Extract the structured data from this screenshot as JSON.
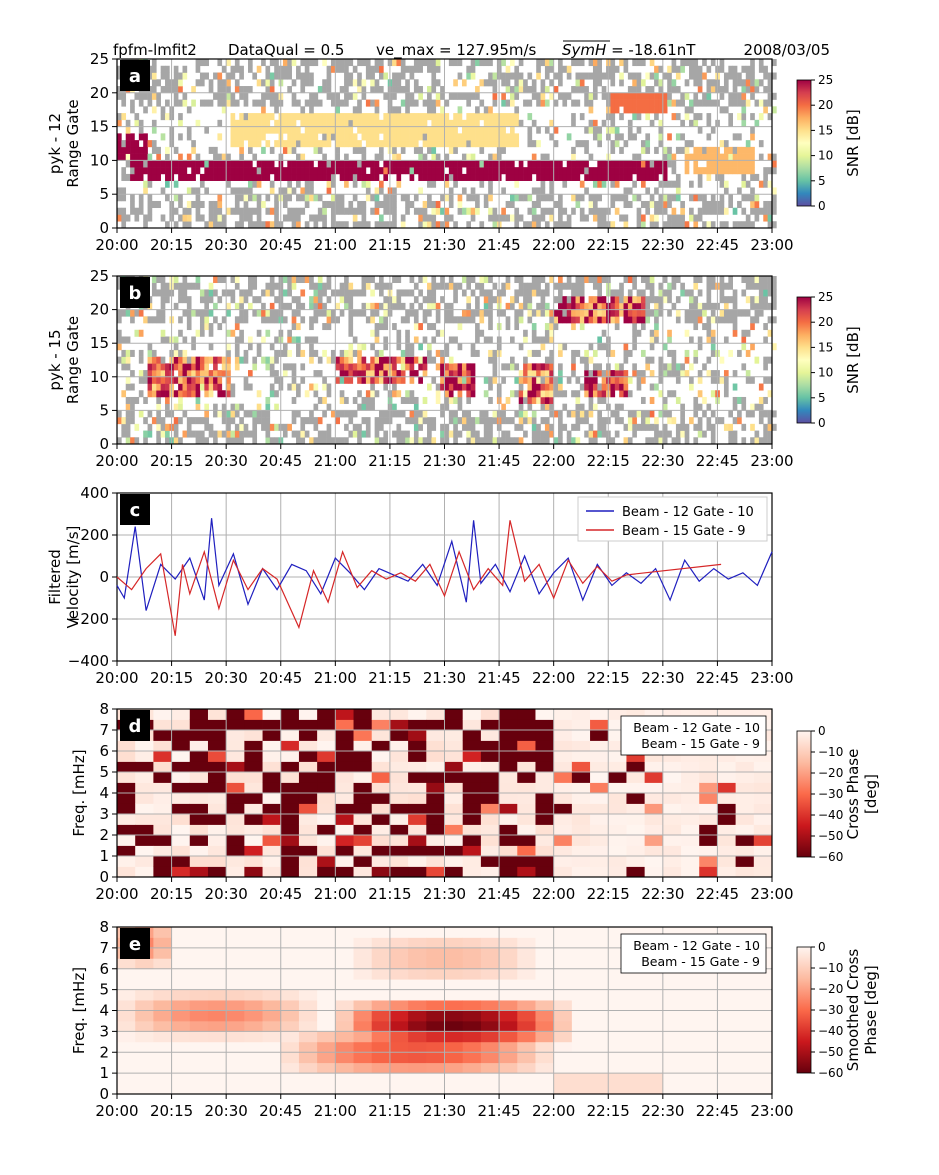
{
  "header": {
    "source": "fpfm-lmfit2",
    "quality": "DataQual = 0.5",
    "vemax": "ve_max = 127.95m/s",
    "symh_name": "SymH",
    "symh_value": " = -18.61nT",
    "date": "2008/03/05"
  },
  "x_ticks": [
    "20:00",
    "20:15",
    "20:30",
    "20:45",
    "21:00",
    "21:15",
    "21:30",
    "21:45",
    "22:00",
    "22:15",
    "22:30",
    "22:45",
    "23:00"
  ],
  "x_range": [
    "20:00",
    "23:00"
  ],
  "colors": {
    "grey_scatter": "#a6a6a6",
    "beam12_line": "#1f1fbf",
    "beam15_line": "#d62728",
    "grid": "#b0b0b0"
  },
  "chart_data": [
    {
      "panel": "a",
      "type": "heatmap",
      "ylabel": [
        "pyk - 12",
        "Range Gate"
      ],
      "yticks": [
        0,
        5,
        10,
        15,
        20,
        25
      ],
      "ylim": [
        0,
        25
      ],
      "colorbar_label": "SNR [dB]",
      "colorbar_ticks": [
        0,
        5,
        10,
        15,
        20,
        25
      ],
      "colormap": "Spectral_r",
      "description_bands": [
        {
          "time_start": "20:03",
          "time_end": "22:30",
          "gate_low": 7,
          "gate_high": 10,
          "snr": 25
        },
        {
          "time_start": "20:00",
          "time_end": "20:08",
          "gate_low": 10,
          "gate_high": 14,
          "snr": 25
        },
        {
          "time_start": "20:30",
          "time_end": "21:50",
          "gate_low": 12,
          "gate_high": 17,
          "snr": 15
        },
        {
          "time_start": "22:15",
          "time_end": "22:30",
          "gate_low": 17,
          "gate_high": 20,
          "snr": 20
        },
        {
          "time_start": "22:35",
          "time_end": "22:55",
          "gate_low": 8,
          "gate_high": 12,
          "snr": 17
        }
      ]
    },
    {
      "panel": "b",
      "type": "heatmap",
      "ylabel": [
        "pyk - 15",
        "Range Gate"
      ],
      "yticks": [
        0,
        5,
        10,
        15,
        20,
        25
      ],
      "ylim": [
        0,
        25
      ],
      "colorbar_label": "SNR [dB]",
      "colorbar_ticks": [
        0,
        5,
        10,
        15,
        20,
        25
      ],
      "colormap": "Spectral_r",
      "description_bands": [
        {
          "time_start": "20:08",
          "time_end": "20:30",
          "gate_low": 7,
          "gate_high": 13,
          "snr": 22
        },
        {
          "time_start": "21:00",
          "time_end": "21:25",
          "gate_low": 9,
          "gate_high": 13,
          "snr": 22
        },
        {
          "time_start": "21:28",
          "time_end": "21:38",
          "gate_low": 7,
          "gate_high": 12,
          "snr": 24
        },
        {
          "time_start": "21:50",
          "time_end": "22:00",
          "gate_low": 6,
          "gate_high": 12,
          "snr": 20
        },
        {
          "time_start": "22:08",
          "time_end": "22:20",
          "gate_low": 7,
          "gate_high": 11,
          "snr": 23
        },
        {
          "time_start": "22:00",
          "time_end": "22:25",
          "gate_low": 18,
          "gate_high": 22,
          "snr": 22
        }
      ]
    },
    {
      "panel": "c",
      "type": "line",
      "ylabel": [
        "Filtered",
        "Velocity [m/s]"
      ],
      "yticks": [
        -400,
        -200,
        0,
        200,
        400
      ],
      "ylim": [
        -400,
        400
      ],
      "legend": "top-right",
      "series": [
        {
          "name": "Beam - 12 Gate - 10",
          "x": [
            "20:00",
            "20:02",
            "20:05",
            "20:08",
            "20:12",
            "20:16",
            "20:20",
            "20:24",
            "20:26",
            "20:28",
            "20:32",
            "20:36",
            "20:40",
            "20:44",
            "20:48",
            "20:52",
            "20:56",
            "21:00",
            "21:04",
            "21:08",
            "21:12",
            "21:16",
            "21:20",
            "21:24",
            "21:28",
            "21:32",
            "21:36",
            "21:38",
            "21:40",
            "21:44",
            "21:48",
            "21:52",
            "21:56",
            "22:00",
            "22:04",
            "22:08",
            "22:12",
            "22:16",
            "22:20",
            "22:24",
            "22:28",
            "22:32",
            "22:36",
            "22:40",
            "22:44",
            "22:48",
            "22:52",
            "22:56",
            "23:00"
          ],
          "values": [
            -40,
            -100,
            240,
            -160,
            60,
            -10,
            90,
            -110,
            280,
            -40,
            110,
            -130,
            40,
            -60,
            60,
            30,
            -80,
            90,
            20,
            -60,
            40,
            10,
            -20,
            60,
            -40,
            170,
            -120,
            270,
            -30,
            60,
            -70,
            100,
            -80,
            20,
            90,
            -110,
            60,
            -40,
            20,
            -30,
            40,
            -110,
            80,
            -20,
            40,
            -10,
            20,
            -40,
            120
          ]
        },
        {
          "name": "Beam - 15 Gate - 9",
          "x": [
            "20:00",
            "20:04",
            "20:08",
            "20:12",
            "20:16",
            "20:18",
            "20:20",
            "20:24",
            "20:28",
            "20:32",
            "20:36",
            "20:40",
            "20:44",
            "20:50",
            "20:54",
            "20:58",
            "21:02",
            "21:06",
            "21:10",
            "21:14",
            "21:18",
            "21:22",
            "21:26",
            "21:30",
            "21:34",
            "21:38",
            "21:42",
            "21:46",
            "21:48",
            "21:52",
            "21:56",
            "22:00",
            "22:04",
            "22:08",
            "22:12",
            "22:16",
            "22:20",
            "22:46"
          ],
          "values": [
            0,
            -60,
            40,
            110,
            -280,
            60,
            -80,
            120,
            -150,
            80,
            -60,
            40,
            -10,
            -240,
            30,
            -120,
            120,
            -50,
            30,
            -10,
            20,
            -20,
            60,
            -90,
            120,
            -60,
            40,
            -40,
            270,
            -20,
            60,
            -100,
            80,
            -30,
            50,
            -20,
            10,
            60
          ]
        }
      ]
    },
    {
      "panel": "d",
      "type": "heatmap",
      "ylabel": [
        "Freq. [mHz]"
      ],
      "yticks": [
        0,
        1,
        2,
        3,
        4,
        5,
        6,
        7,
        8
      ],
      "ylim": [
        0,
        8
      ],
      "legend_lines": [
        "Beam - 12 Gate - 10",
        "Beam - 15 Gate - 9"
      ],
      "colorbar_label": [
        "Cross Phase",
        "[deg]"
      ],
      "colorbar_ticks": [
        0,
        -10,
        -20,
        -30,
        -40,
        -50,
        -60
      ],
      "colormap": "Reds_r",
      "description": "noisy cross phase, mostly -60 deg before 22:00 and near 0 deg after 22:00"
    },
    {
      "panel": "e",
      "type": "heatmap",
      "ylabel": [
        "Freq. [mHz]"
      ],
      "yticks": [
        0,
        1,
        2,
        3,
        4,
        5,
        6,
        7,
        8
      ],
      "ylim": [
        0,
        8
      ],
      "legend_lines": [
        "Beam - 12 Gate - 10",
        "Beam - 15 Gate - 9"
      ],
      "colorbar_label": [
        "Smoothed Cross",
        "Phase [deg]"
      ],
      "colorbar_ticks": [
        0,
        -10,
        -20,
        -30,
        -40,
        -50,
        -60
      ],
      "colormap": "Reds_r",
      "features": [
        {
          "time_start": "20:05",
          "time_end": "20:50",
          "freq": 3.8,
          "phase": -25
        },
        {
          "time_start": "21:05",
          "time_end": "22:00",
          "freq": 3.4,
          "phase": -60
        },
        {
          "time_start": "20:50",
          "time_end": "21:55",
          "freq": 2.0,
          "phase": -35
        },
        {
          "time_start": "21:10",
          "time_end": "21:50",
          "freq": 6.5,
          "phase": -15
        },
        {
          "time_start": "20:05",
          "time_end": "20:10",
          "freq": 7.2,
          "phase": -25
        }
      ]
    }
  ]
}
